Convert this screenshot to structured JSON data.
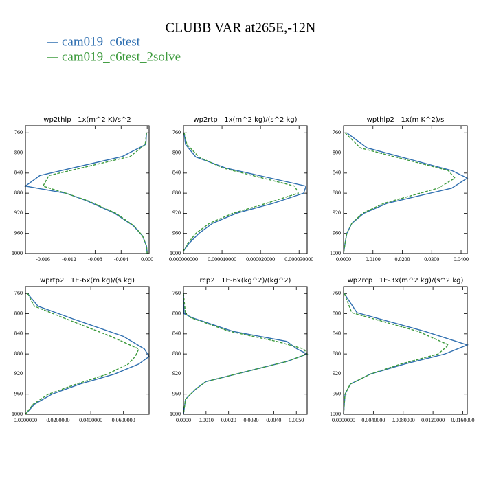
{
  "title": "CLUBB VAR at265E,-12N",
  "chart_data": [
    {
      "type": "line",
      "title": "wp2thlp   1x(m^2 K)/s^2",
      "y": [
        760,
        783,
        807,
        845,
        866,
        880,
        895,
        920,
        945,
        965,
        985,
        1000
      ],
      "series": [
        {
          "name": "cam019_c6test",
          "color": "#2f6fb0",
          "dash": "solid",
          "values": [
            -0.0001,
            -0.0002,
            -0.0038,
            -0.0165,
            -0.0187,
            -0.0125,
            -0.0093,
            -0.005,
            -0.0021,
            -0.0007,
            -0.0001,
            0
          ]
        },
        {
          "name": "cam019_c6test_2solve",
          "color": "#3c9a3c",
          "dash": "dashed",
          "values": [
            -0.0001,
            -0.0003,
            -0.0026,
            -0.0151,
            -0.016,
            -0.0125,
            -0.0091,
            -0.0048,
            -0.002,
            -0.0007,
            -0.0001,
            0
          ]
        }
      ],
      "xlim": [
        -0.0187,
        0.0003
      ],
      "xticks": [
        -0.016,
        -0.012,
        -0.008,
        -0.004,
        {
          "value": 0,
          "label": "0.000"
        }
      ],
      "ylim": [
        1000,
        746
      ],
      "yticks": [
        760,
        800,
        840,
        880,
        920,
        960,
        1000
      ]
    },
    {
      "type": "line",
      "title": "wp2rtp   1x(m^2 kg)/(s^2 kg)",
      "y": [
        760,
        783,
        808,
        830,
        866,
        880,
        900,
        920,
        940,
        960,
        980,
        995
      ],
      "series": [
        {
          "name": "cam019_c6test",
          "color": "#2f6fb0",
          "dash": "solid",
          "values": [
            1.8e-07,
            5.3e-07,
            3.2e-06,
            1.1e-05,
            3.18e-05,
            3.12e-05,
            2.33e-05,
            1.37e-05,
            7.5e-06,
            4e-06,
            1.4e-06,
            0
          ]
        },
        {
          "name": "cam019_c6test_2solve",
          "color": "#3c9a3c",
          "dash": "dashed",
          "values": [
            1.8e-07,
            8.8e-07,
            4e-06,
            1.02e-05,
            2.89e-05,
            2.98e-05,
            2.16e-05,
            1.28e-05,
            6.7e-06,
            3.2e-06,
            1.1e-06,
            0
          ]
        }
      ],
      "xlim": [
        0,
        3.21e-05
      ],
      "xticks": [
        {
          "value": 0,
          "label": "0.000000000"
        },
        {
          "value": 1e-05,
          "label": "0.000010000"
        },
        {
          "value": 2e-05,
          "label": "0.000020000"
        },
        {
          "value": 3e-05,
          "label": "0.000030000"
        }
      ],
      "ylim": [
        1000,
        746
      ],
      "yticks": [
        760,
        800,
        840,
        880,
        920,
        960,
        1000
      ]
    },
    {
      "type": "line",
      "title": "wpthlp2   1x(m K^2)/s",
      "y": [
        760,
        790,
        835,
        850,
        870,
        900,
        920,
        940,
        960,
        980,
        1000
      ],
      "series": [
        {
          "name": "cam019_c6test",
          "color": "#2f6fb0",
          "dash": "solid",
          "values": [
            0.0011,
            0.008,
            0.0368,
            0.0421,
            0.0368,
            0.0149,
            0.0069,
            0.0028,
            0.0011,
            0.0005,
            0
          ]
        },
        {
          "name": "cam019_c6test_2solve",
          "color": "#3c9a3c",
          "dash": "dashed",
          "values": [
            0.0005,
            0.0057,
            0.0356,
            0.0379,
            0.0322,
            0.0138,
            0.0064,
            0.0028,
            0.0011,
            0.0005,
            0
          ]
        }
      ],
      "xlim": [
        0,
        0.0421
      ],
      "xticks": [
        {
          "value": 0,
          "label": "0.0000"
        },
        {
          "value": 0.01,
          "label": "0.0100"
        },
        {
          "value": 0.02,
          "label": "0.0200"
        },
        {
          "value": 0.03,
          "label": "0.0300"
        },
        {
          "value": 0.04,
          "label": "0.0400"
        }
      ],
      "ylim": [
        1000,
        746
      ],
      "yticks": [
        760,
        800,
        840,
        880,
        920,
        960,
        1000
      ]
    },
    {
      "type": "line",
      "title": "wprtp2   1E-6x(m kg)/(s kg)",
      "y": [
        760,
        785,
        810,
        845,
        870,
        885,
        900,
        920,
        940,
        960,
        980,
        1000
      ],
      "series": [
        {
          "name": "cam019_c6test",
          "color": "#2f6fb0",
          "dash": "solid",
          "values": [
            0.0013,
            0.0077,
            0.0289,
            0.06,
            0.0728,
            0.0757,
            0.0694,
            0.0545,
            0.0332,
            0.0162,
            0.0055,
            0
          ]
        },
        {
          "name": "cam019_c6test_2solve",
          "color": "#3c9a3c",
          "dash": "dashed",
          "values": [
            0.0013,
            0.0055,
            0.0247,
            0.0523,
            0.0694,
            0.0672,
            0.063,
            0.0502,
            0.0311,
            0.014,
            0.0047,
            0
          ]
        }
      ],
      "xlim": [
        0,
        0.0757
      ],
      "xticks": [
        {
          "value": 0,
          "label": "0.0000000"
        },
        {
          "value": 0.02,
          "label": "0.0200000"
        },
        {
          "value": 0.04,
          "label": "0.0400000"
        },
        {
          "value": 0.06,
          "label": "0.0600000"
        }
      ],
      "ylim": [
        1000,
        746
      ],
      "yticks": [
        760,
        800,
        840,
        880,
        920,
        960,
        1000
      ]
    },
    {
      "type": "line",
      "title": "rcp2   1E-6x(kg^2)/(kg^2)",
      "y": [
        760,
        800,
        808,
        835,
        855,
        870,
        880,
        895,
        915,
        935,
        950,
        970,
        990,
        1000
      ],
      "series": [
        {
          "name": "cam019_c6test",
          "color": "#2f6fb0",
          "dash": "solid",
          "values": [
            0,
            3e-05,
            0.00039,
            0.00219,
            0.00458,
            0.00503,
            0.00548,
            0.00458,
            0.00278,
            0.00099,
            0.00054,
            9e-05,
            3e-05,
            0
          ]
        },
        {
          "name": "cam019_c6test_2solve",
          "color": "#3c9a3c",
          "dash": "dashed",
          "values": [
            0,
            9e-05,
            0.00033,
            0.00204,
            0.00413,
            0.00533,
            0.00548,
            0.00458,
            0.00278,
            0.00099,
            0.00054,
            9e-05,
            3e-05,
            0
          ]
        }
      ],
      "xlim": [
        0,
        0.00548
      ],
      "xticks": [
        {
          "value": 0,
          "label": "0.0000"
        },
        {
          "value": 0.001,
          "label": "0.0010"
        },
        {
          "value": 0.002,
          "label": "0.0020"
        },
        {
          "value": 0.003,
          "label": "0.0030"
        },
        {
          "value": 0.004,
          "label": "0.0040"
        },
        {
          "value": 0.005,
          "label": "0.0050"
        }
      ],
      "ylim": [
        1000,
        746
      ],
      "yticks": [
        760,
        800,
        840,
        880,
        920,
        960,
        1000
      ]
    },
    {
      "type": "line",
      "title": "wp2rcp   1E-3x(m^2 kg)/(s^2 kg)",
      "y": [
        760,
        798,
        835,
        862,
        880,
        900,
        920,
        940,
        960,
        980,
        1000
      ],
      "series": [
        {
          "name": "cam019_c6test",
          "color": "#2f6fb0",
          "dash": "solid",
          "values": [
            0.0001,
            0.0018,
            0.0109,
            0.0166,
            0.0136,
            0.0082,
            0.0036,
            0.0009,
            0.0002,
            0.0001,
            0
          ]
        },
        {
          "name": "cam019_c6test_2solve",
          "color": "#3c9a3c",
          "dash": "dashed",
          "values": [
            0.0001,
            0.0011,
            0.01,
            0.0141,
            0.0127,
            0.0077,
            0.0036,
            0.0009,
            0.0002,
            0.0001,
            0
          ]
        }
      ],
      "xlim": [
        0,
        0.0166
      ],
      "xticks": [
        {
          "value": 0,
          "label": "0.0000000"
        },
        {
          "value": 0.004,
          "label": "0.0040000"
        },
        {
          "value": 0.008,
          "label": "0.0080000"
        },
        {
          "value": 0.012,
          "label": "0.0120000"
        },
        {
          "value": 0.016,
          "label": "0.0160000"
        }
      ],
      "ylim": [
        1000,
        746
      ],
      "yticks": [
        760,
        800,
        840,
        880,
        920,
        960,
        1000
      ]
    }
  ]
}
